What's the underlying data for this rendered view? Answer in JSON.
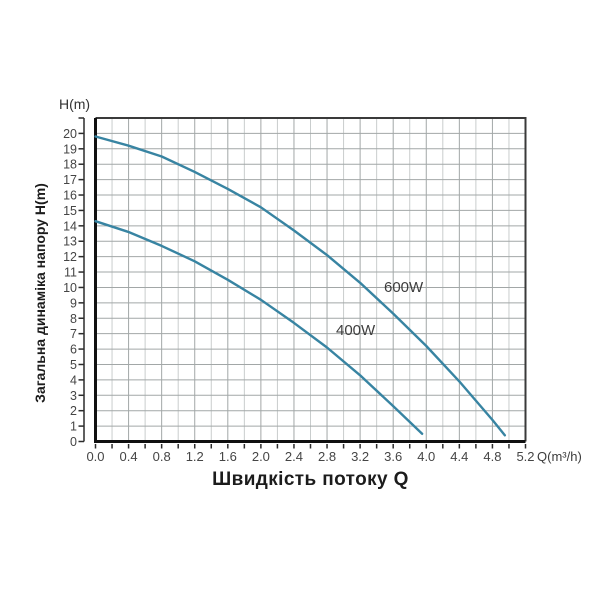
{
  "colors": {
    "background": "#ffffff",
    "curve": "#3884a2",
    "grid_major": "#a2a7a7",
    "grid_minor": "#c9cdcd",
    "frame": "#3a3a3a",
    "axis_dark": "#101010",
    "tick": "#2c2c2c",
    "tick_text": "#454545"
  },
  "chart_data": {
    "type": "line",
    "title": "",
    "xlabel": "Швидкість потоку Q",
    "ylabel": "Загальна динаміка напору H(m)",
    "x_axis_unit_label": "Q(m³/h)",
    "y_axis_unit_label": "H(m)",
    "xlim": [
      0,
      5.2
    ],
    "ylim": [
      0,
      21
    ],
    "x_major_step": 0.4,
    "x_minor_step": 0.2,
    "y_major_step": 1,
    "grid": true,
    "legend_position": "inline-labels",
    "x_ticks": [
      "0.0",
      "0.4",
      "0.8",
      "1.2",
      "1.6",
      "2.0",
      "2.4",
      "2.8",
      "3.2",
      "3.6",
      "4.0",
      "4.4",
      "4.8",
      "5.2"
    ],
    "y_ticks": [
      0,
      1,
      2,
      3,
      4,
      5,
      6,
      7,
      8,
      9,
      10,
      11,
      12,
      13,
      14,
      15,
      16,
      17,
      18,
      19,
      20
    ],
    "series": [
      {
        "name": "600W",
        "points": [
          [
            0,
            19.8
          ],
          [
            0.4,
            19.2
          ],
          [
            0.8,
            18.5
          ],
          [
            1.2,
            17.5
          ],
          [
            1.6,
            16.4
          ],
          [
            2.0,
            15.2
          ],
          [
            2.4,
            13.7
          ],
          [
            2.8,
            12.1
          ],
          [
            3.2,
            10.3
          ],
          [
            3.6,
            8.3
          ],
          [
            4.0,
            6.2
          ],
          [
            4.4,
            3.9
          ],
          [
            4.8,
            1.4
          ],
          [
            4.95,
            0.4
          ]
        ]
      },
      {
        "name": "400W",
        "points": [
          [
            0,
            14.3
          ],
          [
            0.4,
            13.6
          ],
          [
            0.8,
            12.7
          ],
          [
            1.2,
            11.7
          ],
          [
            1.6,
            10.5
          ],
          [
            2.0,
            9.2
          ],
          [
            2.4,
            7.7
          ],
          [
            2.8,
            6.1
          ],
          [
            3.2,
            4.3
          ],
          [
            3.6,
            2.3
          ],
          [
            3.95,
            0.5
          ]
        ]
      }
    ]
  }
}
